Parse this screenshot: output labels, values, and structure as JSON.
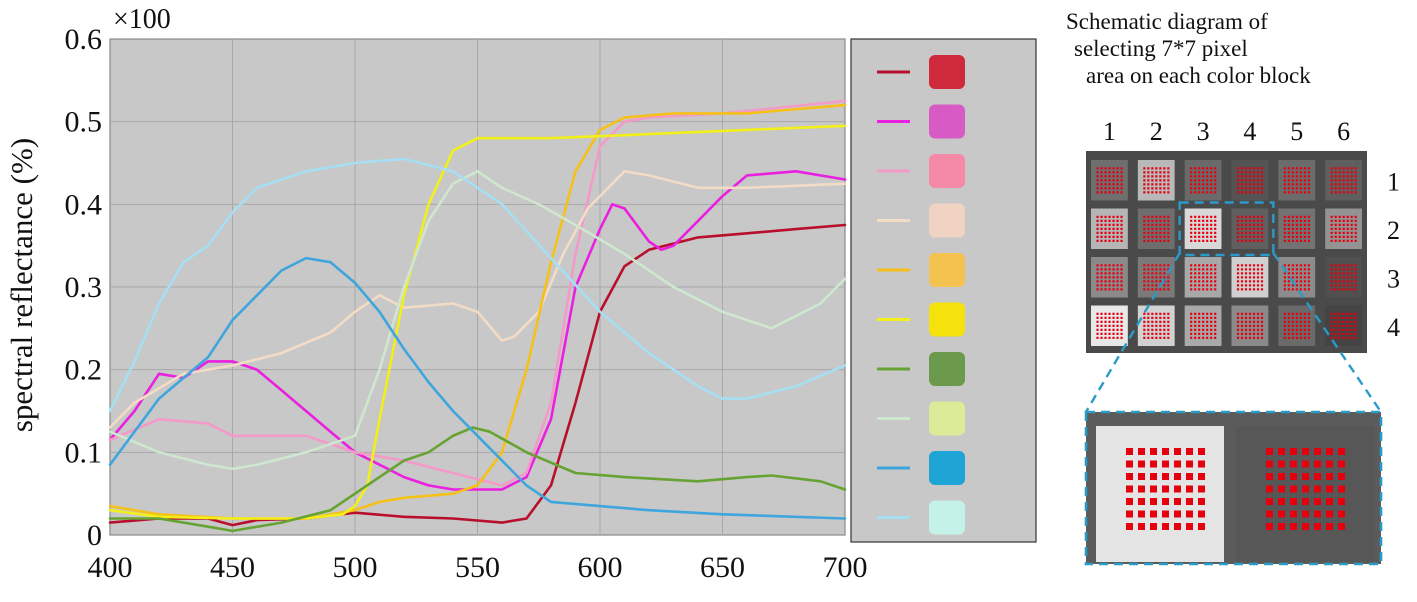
{
  "chart_data": {
    "type": "line",
    "title": "",
    "xlabel": "",
    "ylabel": "spectral reflectance (%)",
    "y_multiplier": "×100",
    "xlim": [
      400,
      700
    ],
    "ylim": [
      0,
      0.6
    ],
    "x_ticks": [
      "400",
      "450",
      "500",
      "550",
      "600",
      "650",
      "700"
    ],
    "y_ticks": [
      "0",
      "0.1",
      "0.2",
      "0.3",
      "0.4",
      "0.5",
      "0.6"
    ],
    "grid": true,
    "legend_position": "right",
    "series": [
      {
        "color": "#b8102c",
        "swatch": "#cf2a3c",
        "points": [
          [
            400,
            0.015
          ],
          [
            420,
            0.02
          ],
          [
            440,
            0.02
          ],
          [
            450,
            0.012
          ],
          [
            460,
            0.018
          ],
          [
            480,
            0.02
          ],
          [
            500,
            0.027
          ],
          [
            520,
            0.022
          ],
          [
            540,
            0.02
          ],
          [
            560,
            0.015
          ],
          [
            570,
            0.02
          ],
          [
            580,
            0.06
          ],
          [
            590,
            0.16
          ],
          [
            600,
            0.27
          ],
          [
            610,
            0.325
          ],
          [
            620,
            0.345
          ],
          [
            640,
            0.36
          ],
          [
            660,
            0.365
          ],
          [
            680,
            0.37
          ],
          [
            700,
            0.375
          ]
        ]
      },
      {
        "color": "#ea1fe0",
        "swatch": "#d85ac4",
        "points": [
          [
            400,
            0.115
          ],
          [
            410,
            0.15
          ],
          [
            420,
            0.195
          ],
          [
            430,
            0.19
          ],
          [
            440,
            0.21
          ],
          [
            450,
            0.21
          ],
          [
            460,
            0.2
          ],
          [
            470,
            0.175
          ],
          [
            480,
            0.15
          ],
          [
            490,
            0.125
          ],
          [
            500,
            0.1
          ],
          [
            510,
            0.085
          ],
          [
            520,
            0.07
          ],
          [
            530,
            0.06
          ],
          [
            540,
            0.055
          ],
          [
            560,
            0.055
          ],
          [
            570,
            0.07
          ],
          [
            580,
            0.14
          ],
          [
            590,
            0.3
          ],
          [
            600,
            0.37
          ],
          [
            605,
            0.4
          ],
          [
            610,
            0.395
          ],
          [
            620,
            0.355
          ],
          [
            625,
            0.345
          ],
          [
            630,
            0.35
          ],
          [
            640,
            0.38
          ],
          [
            650,
            0.41
          ],
          [
            660,
            0.435
          ],
          [
            680,
            0.44
          ],
          [
            700,
            0.43
          ]
        ]
      },
      {
        "color": "#f39ac8",
        "swatch": "#f48aa8",
        "points": [
          [
            400,
            0.115
          ],
          [
            420,
            0.14
          ],
          [
            440,
            0.135
          ],
          [
            450,
            0.12
          ],
          [
            460,
            0.12
          ],
          [
            480,
            0.12
          ],
          [
            500,
            0.1
          ],
          [
            520,
            0.09
          ],
          [
            540,
            0.075
          ],
          [
            560,
            0.06
          ],
          [
            570,
            0.075
          ],
          [
            580,
            0.16
          ],
          [
            590,
            0.34
          ],
          [
            600,
            0.47
          ],
          [
            610,
            0.5
          ],
          [
            620,
            0.505
          ],
          [
            650,
            0.51
          ],
          [
            700,
            0.525
          ]
        ]
      },
      {
        "color": "#f3dcc6",
        "swatch": "#f0d3c3",
        "points": [
          [
            400,
            0.13
          ],
          [
            410,
            0.16
          ],
          [
            430,
            0.195
          ],
          [
            450,
            0.205
          ],
          [
            470,
            0.22
          ],
          [
            490,
            0.245
          ],
          [
            500,
            0.27
          ],
          [
            510,
            0.29
          ],
          [
            520,
            0.275
          ],
          [
            540,
            0.28
          ],
          [
            550,
            0.27
          ],
          [
            560,
            0.235
          ],
          [
            565,
            0.24
          ],
          [
            575,
            0.27
          ],
          [
            585,
            0.34
          ],
          [
            595,
            0.395
          ],
          [
            610,
            0.44
          ],
          [
            620,
            0.435
          ],
          [
            640,
            0.42
          ],
          [
            660,
            0.42
          ],
          [
            700,
            0.425
          ]
        ]
      },
      {
        "color": "#f5c118",
        "swatch": "#f4c24e",
        "points": [
          [
            400,
            0.035
          ],
          [
            420,
            0.025
          ],
          [
            450,
            0.02
          ],
          [
            480,
            0.02
          ],
          [
            500,
            0.03
          ],
          [
            510,
            0.04
          ],
          [
            520,
            0.045
          ],
          [
            540,
            0.05
          ],
          [
            550,
            0.06
          ],
          [
            560,
            0.1
          ],
          [
            570,
            0.2
          ],
          [
            580,
            0.33
          ],
          [
            590,
            0.44
          ],
          [
            600,
            0.49
          ],
          [
            610,
            0.505
          ],
          [
            630,
            0.51
          ],
          [
            660,
            0.51
          ],
          [
            700,
            0.52
          ]
        ]
      },
      {
        "color": "#f2ef1a",
        "swatch": "#f5e10c",
        "points": [
          [
            400,
            0.03
          ],
          [
            420,
            0.022
          ],
          [
            450,
            0.02
          ],
          [
            480,
            0.02
          ],
          [
            495,
            0.025
          ],
          [
            500,
            0.035
          ],
          [
            505,
            0.06
          ],
          [
            510,
            0.14
          ],
          [
            520,
            0.29
          ],
          [
            530,
            0.4
          ],
          [
            540,
            0.465
          ],
          [
            550,
            0.48
          ],
          [
            580,
            0.48
          ],
          [
            620,
            0.485
          ],
          [
            660,
            0.49
          ],
          [
            700,
            0.495
          ]
        ]
      },
      {
        "color": "#67a332",
        "swatch": "#6c9a4c",
        "points": [
          [
            400,
            0.02
          ],
          [
            420,
            0.02
          ],
          [
            440,
            0.01
          ],
          [
            450,
            0.005
          ],
          [
            470,
            0.015
          ],
          [
            490,
            0.03
          ],
          [
            510,
            0.07
          ],
          [
            520,
            0.09
          ],
          [
            530,
            0.1
          ],
          [
            540,
            0.12
          ],
          [
            548,
            0.13
          ],
          [
            555,
            0.125
          ],
          [
            570,
            0.1
          ],
          [
            590,
            0.075
          ],
          [
            610,
            0.07
          ],
          [
            640,
            0.065
          ],
          [
            660,
            0.07
          ],
          [
            670,
            0.072
          ],
          [
            690,
            0.065
          ],
          [
            700,
            0.055
          ]
        ]
      },
      {
        "color": "#cfe6cf",
        "swatch": "#dbeb98",
        "points": [
          [
            400,
            0.125
          ],
          [
            420,
            0.1
          ],
          [
            440,
            0.085
          ],
          [
            450,
            0.08
          ],
          [
            460,
            0.085
          ],
          [
            480,
            0.1
          ],
          [
            500,
            0.12
          ],
          [
            510,
            0.2
          ],
          [
            520,
            0.3
          ],
          [
            530,
            0.38
          ],
          [
            540,
            0.425
          ],
          [
            550,
            0.44
          ],
          [
            560,
            0.42
          ],
          [
            575,
            0.4
          ],
          [
            590,
            0.375
          ],
          [
            610,
            0.34
          ],
          [
            630,
            0.3
          ],
          [
            650,
            0.27
          ],
          [
            670,
            0.25
          ],
          [
            690,
            0.28
          ],
          [
            700,
            0.31
          ]
        ]
      },
      {
        "color": "#3fa6dd",
        "swatch": "#1ea5d6",
        "points": [
          [
            400,
            0.085
          ],
          [
            420,
            0.165
          ],
          [
            440,
            0.215
          ],
          [
            450,
            0.26
          ],
          [
            460,
            0.29
          ],
          [
            470,
            0.32
          ],
          [
            480,
            0.335
          ],
          [
            490,
            0.33
          ],
          [
            500,
            0.305
          ],
          [
            510,
            0.27
          ],
          [
            520,
            0.225
          ],
          [
            530,
            0.185
          ],
          [
            540,
            0.15
          ],
          [
            550,
            0.12
          ],
          [
            560,
            0.09
          ],
          [
            570,
            0.06
          ],
          [
            580,
            0.04
          ],
          [
            600,
            0.035
          ],
          [
            620,
            0.03
          ],
          [
            650,
            0.025
          ],
          [
            700,
            0.02
          ]
        ]
      },
      {
        "color": "#a6def4",
        "swatch": "#c4f2e8",
        "points": [
          [
            400,
            0.15
          ],
          [
            410,
            0.21
          ],
          [
            420,
            0.28
          ],
          [
            430,
            0.33
          ],
          [
            440,
            0.35
          ],
          [
            450,
            0.39
          ],
          [
            460,
            0.42
          ],
          [
            480,
            0.44
          ],
          [
            500,
            0.45
          ],
          [
            520,
            0.455
          ],
          [
            540,
            0.44
          ],
          [
            560,
            0.4
          ],
          [
            580,
            0.335
          ],
          [
            600,
            0.27
          ],
          [
            620,
            0.22
          ],
          [
            640,
            0.18
          ],
          [
            650,
            0.165
          ],
          [
            660,
            0.165
          ],
          [
            680,
            0.18
          ],
          [
            700,
            0.205
          ]
        ]
      }
    ]
  },
  "caption": {
    "line1": "Schematic diagram of",
    "line2": "selecting 7*7 pixel",
    "line3": "area on each color block"
  },
  "grid_labels": {
    "columns": [
      "1",
      "2",
      "3",
      "4",
      "5",
      "6"
    ],
    "rows": [
      "1",
      "2",
      "3",
      "4"
    ]
  },
  "block_shades": [
    [
      "#6f6f6f",
      "#b9b9b9",
      "#6a6a6a",
      "#545454",
      "#6c6c6c",
      "#5f5f5f"
    ],
    [
      "#b6b6b6",
      "#6e6e6e",
      "#d8d8d8",
      "#5f5f5f",
      "#737373",
      "#939393"
    ],
    [
      "#8a8a8a",
      "#7a7a7a",
      "#a8a8a8",
      "#d0d0d0",
      "#8c8c8c",
      "#505050"
    ],
    [
      "#e8e8e8",
      "#d2d2d2",
      "#a9a9a9",
      "#8a8a8a",
      "#6a6a6a",
      "#444444"
    ]
  ],
  "zoom_shades": [
    "#e4e4e4",
    "#575757"
  ],
  "colors": {
    "plot_bg": "#c8c8c8",
    "legend_bg": "#c8c8c8",
    "dashed_border": "#2a9bc9",
    "pixel_dot": "#e6000f"
  }
}
